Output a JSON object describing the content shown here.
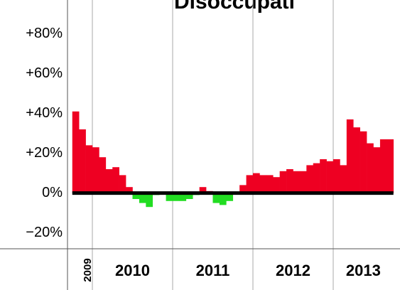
{
  "chart_data": {
    "type": "bar",
    "title": "Disoccupati",
    "categories": [
      "2009",
      null,
      null,
      "2010",
      null,
      null,
      null,
      null,
      null,
      null,
      null,
      null,
      null,
      null,
      null,
      "2011",
      null,
      null,
      null,
      null,
      null,
      null,
      null,
      null,
      null,
      null,
      null,
      "2012",
      null,
      null,
      null,
      null,
      null,
      null,
      null,
      null,
      null,
      null,
      null,
      "2013",
      null,
      null,
      null,
      null,
      null,
      null,
      null,
      null
    ],
    "values": [
      41,
      32,
      24,
      23,
      18,
      12,
      13,
      9,
      3,
      -3,
      -5,
      -7,
      -1,
      0,
      -4,
      -4,
      -4,
      -3,
      -1,
      3,
      1,
      -5,
      -6,
      -4,
      0,
      4,
      9,
      10,
      9,
      9,
      8,
      11,
      12,
      11,
      11,
      14,
      15,
      17,
      16,
      17,
      14,
      37,
      33,
      31,
      25,
      23,
      27,
      27
    ],
    "positive_color": "#ee0022",
    "negative_color": "#22dd22",
    "ylim": [
      -28,
      97
    ],
    "yticks": [
      {
        "value": -20,
        "label": "−20%"
      },
      {
        "value": 0,
        "label": "0%"
      },
      {
        "value": 20,
        "label": "+20%"
      },
      {
        "value": 40,
        "label": "+40%"
      },
      {
        "value": 60,
        "label": "+60%"
      },
      {
        "value": 80,
        "label": "+80%"
      }
    ]
  }
}
